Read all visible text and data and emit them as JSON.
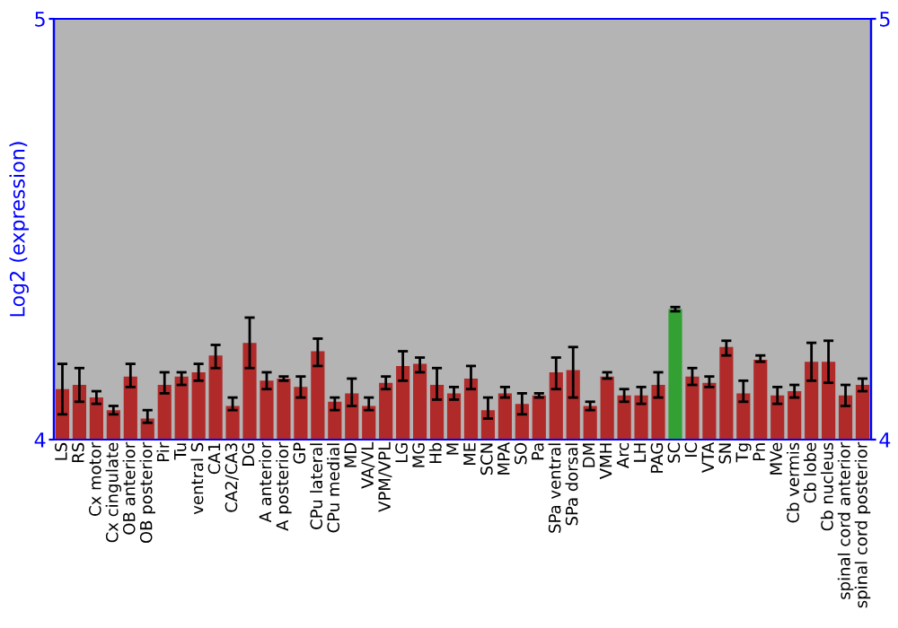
{
  "chart_data": {
    "type": "bar",
    "ylabel": "Log2 (expression)",
    "categories": [
      "LS",
      "RS",
      "Cx motor",
      "Cx cingulate",
      "OB anterior",
      "OB posterior",
      "Pir",
      "Tu",
      "ventral S",
      "CA1",
      "CA2/CA3",
      "DG",
      "A anterior",
      "A posterior",
      "GP",
      "CPu lateral",
      "CPu medial",
      "MD",
      "VA/VL",
      "VPM/VPL",
      "LG",
      "MG",
      "Hb",
      "M",
      "ME",
      "SCN",
      "MPA",
      "SO",
      "Pa",
      "SPa ventral",
      "SPa dorsal",
      "DM",
      "VMH",
      "Arc",
      "LH",
      "PAG",
      "SC",
      "IC",
      "VTA",
      "SN",
      "Tg",
      "Pn",
      "MVe",
      "Cb vermis",
      "Cb lobe",
      "Cb nucleus",
      "spinal cord anterior",
      "spinal cord posterior"
    ],
    "values": [
      4.12,
      4.13,
      4.1,
      4.07,
      4.15,
      4.05,
      4.13,
      4.15,
      4.16,
      4.2,
      4.08,
      4.23,
      4.14,
      4.145,
      4.125,
      4.21,
      4.09,
      4.11,
      4.08,
      4.135,
      4.175,
      4.18,
      4.13,
      4.11,
      4.145,
      4.07,
      4.11,
      4.085,
      4.105,
      4.16,
      4.165,
      4.08,
      4.15,
      4.105,
      4.105,
      4.13,
      4.31,
      4.15,
      4.135,
      4.22,
      4.11,
      4.19,
      4.105,
      4.115,
      4.185,
      4.185,
      4.105,
      4.13
    ],
    "errors": [
      [
        4.06,
        4.18
      ],
      [
        4.09,
        4.17
      ],
      [
        4.085,
        4.115
      ],
      [
        4.06,
        4.08
      ],
      [
        4.125,
        4.18
      ],
      [
        4.04,
        4.07
      ],
      [
        4.11,
        4.16
      ],
      [
        4.13,
        4.16
      ],
      [
        4.14,
        4.18
      ],
      [
        4.17,
        4.225
      ],
      [
        4.07,
        4.1
      ],
      [
        4.17,
        4.29
      ],
      [
        4.12,
        4.16
      ],
      [
        4.14,
        4.15
      ],
      [
        4.1,
        4.15
      ],
      [
        4.175,
        4.24
      ],
      [
        4.07,
        4.1
      ],
      [
        4.08,
        4.145
      ],
      [
        4.07,
        4.1
      ],
      [
        4.12,
        4.15
      ],
      [
        4.14,
        4.21
      ],
      [
        4.16,
        4.195
      ],
      [
        4.095,
        4.17
      ],
      [
        4.095,
        4.125
      ],
      [
        4.12,
        4.175
      ],
      [
        4.05,
        4.1
      ],
      [
        4.1,
        4.125
      ],
      [
        4.06,
        4.11
      ],
      [
        4.1,
        4.11
      ],
      [
        4.12,
        4.195
      ],
      [
        4.1,
        4.22
      ],
      [
        4.07,
        4.09
      ],
      [
        4.145,
        4.16
      ],
      [
        4.09,
        4.12
      ],
      [
        4.085,
        4.125
      ],
      [
        4.1,
        4.16
      ],
      [
        4.305,
        4.315
      ],
      [
        4.13,
        4.17
      ],
      [
        4.125,
        4.15
      ],
      [
        4.2,
        4.235
      ],
      [
        4.09,
        4.14
      ],
      [
        4.185,
        4.2
      ],
      [
        4.085,
        4.125
      ],
      [
        4.1,
        4.13
      ],
      [
        4.14,
        4.23
      ],
      [
        4.135,
        4.235
      ],
      [
        4.08,
        4.13
      ],
      [
        4.115,
        4.145
      ]
    ],
    "colors": [
      "#b02a2a",
      "#b02a2a",
      "#b02a2a",
      "#b02a2a",
      "#b02a2a",
      "#b02a2a",
      "#b02a2a",
      "#b02a2a",
      "#b02a2a",
      "#b02a2a",
      "#b02a2a",
      "#b02a2a",
      "#b02a2a",
      "#b02a2a",
      "#b02a2a",
      "#b02a2a",
      "#b02a2a",
      "#b02a2a",
      "#b02a2a",
      "#b02a2a",
      "#b02a2a",
      "#b02a2a",
      "#b02a2a",
      "#b02a2a",
      "#b02a2a",
      "#b02a2a",
      "#b02a2a",
      "#b02a2a",
      "#b02a2a",
      "#b02a2a",
      "#b02a2a",
      "#b02a2a",
      "#b02a2a",
      "#b02a2a",
      "#b02a2a",
      "#b02a2a",
      "#33a033",
      "#b02a2a",
      "#b02a2a",
      "#b02a2a",
      "#b02a2a",
      "#b02a2a",
      "#b02a2a",
      "#b02a2a",
      "#b02a2a",
      "#b02a2a",
      "#b02a2a",
      "#b02a2a"
    ],
    "ylim": [
      4,
      5
    ],
    "yticks": [
      4,
      5
    ],
    "y2lim": [
      4,
      5
    ],
    "y2ticks": [
      4,
      5
    ],
    "grid": false
  }
}
